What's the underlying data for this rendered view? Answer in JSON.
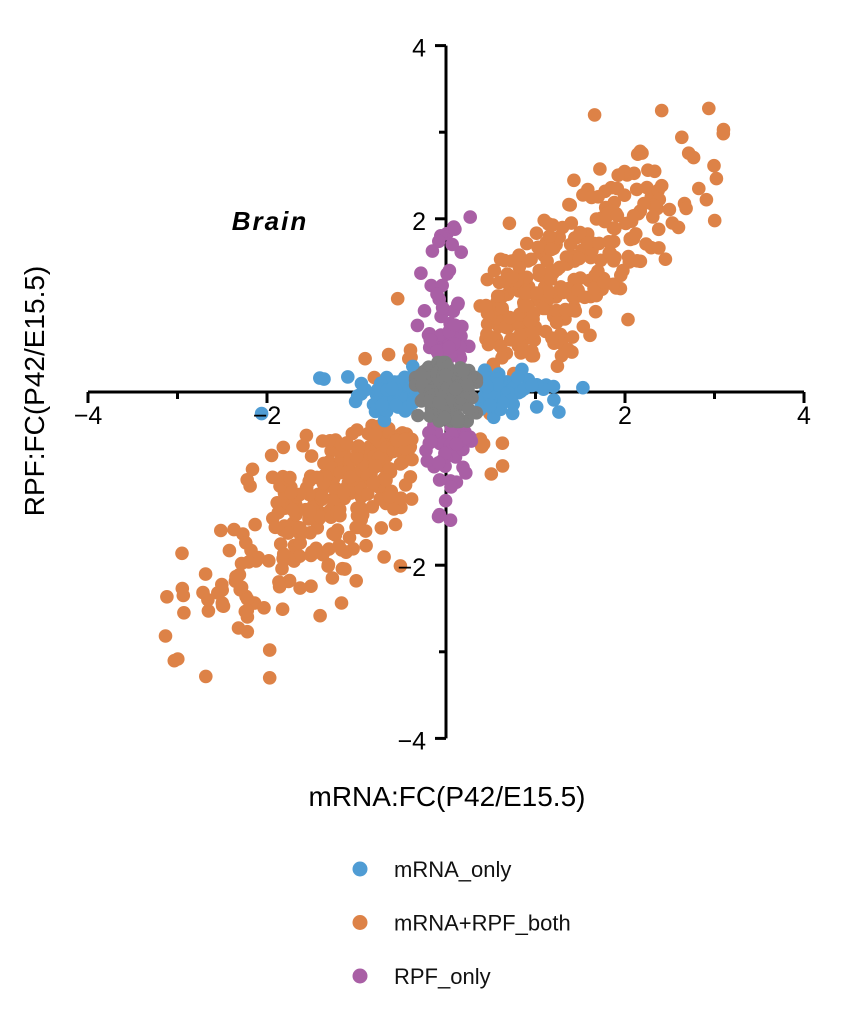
{
  "figure": {
    "title": "Brain",
    "x_axis_label": "mRNA:FC(P42/E15.5)",
    "y_axis_label": "RPF:FC(P42/E15.5)"
  },
  "legend": {
    "items": [
      {
        "label": "mRNA_only",
        "color": "#4F9CD4"
      },
      {
        "label": "mRNA+RPF_both",
        "color": "#DD8247"
      },
      {
        "label": "RPF_only",
        "color": "#A95FA5"
      }
    ]
  },
  "colors": {
    "axis": "#000000",
    "text": "#000000",
    "background": "#ffffff",
    "no_change_gray": "#7F7F7F"
  },
  "chart_data": {
    "type": "scatter",
    "title": "Brain",
    "xlabel": "mRNA:FC(P42/E15.5)",
    "ylabel": "RPF:FC(P42/E15.5)",
    "xlim": [
      -4,
      4
    ],
    "ylim": [
      -4,
      4
    ],
    "grid": false,
    "legend_position": "below",
    "point_radius_px": 6.8,
    "seed": 20,
    "x_ticks": [
      {
        "v": -4,
        "label": "−4",
        "major": true
      },
      {
        "v": -3,
        "major": false
      },
      {
        "v": -2,
        "label": "−2",
        "major": true
      },
      {
        "v": -1,
        "major": false
      },
      {
        "v": 1,
        "major": false
      },
      {
        "v": 2,
        "label": "2",
        "major": true
      },
      {
        "v": 3,
        "major": false
      },
      {
        "v": 4,
        "label": "4",
        "major": true
      }
    ],
    "y_ticks": [
      {
        "v": -4,
        "label": "−4",
        "major": true
      },
      {
        "v": -3,
        "major": false
      },
      {
        "v": -2,
        "label": "−2",
        "major": true
      },
      {
        "v": -1,
        "major": false
      },
      {
        "v": 1,
        "major": false
      },
      {
        "v": 2,
        "label": "2",
        "major": true
      },
      {
        "v": 4,
        "label": "4",
        "major": true
      },
      {
        "v": 3,
        "major": false
      }
    ],
    "draw_order": [
      "mRNA+RPF_both",
      "mRNA_only",
      "RPF_only",
      "no_change"
    ],
    "series": [
      {
        "name": "mRNA+RPF_both",
        "color": "#DD8247",
        "count": 620,
        "in_legend": true,
        "gen": {
          "kind": "diagonal",
          "x_sd": 1.3,
          "slope": 0.93,
          "resid_sd": 0.5,
          "min_abs": 0.38,
          "soft_min": 0.15,
          "soft_p": 0.07,
          "x_max": 3.2,
          "y_max": 3.3
        },
        "outliers": [
          [
            3.1,
            3.03
          ],
          [
            1.66,
            3.2
          ],
          [
            2.17,
            2.78
          ],
          [
            2.91,
            2.22
          ],
          [
            -1.97,
            -3.3
          ],
          [
            -1.97,
            -2.98
          ],
          [
            -2.55,
            -2.32
          ],
          [
            -2.66,
            -2.4
          ]
        ]
      },
      {
        "name": "mRNA_only",
        "color": "#4F9CD4",
        "count": 120,
        "in_legend": true,
        "gen": {
          "kind": "x_arm",
          "p_pos": 0.55,
          "offset": 0.35,
          "spread": 0.36,
          "tail_p": 0.12,
          "tail_max": 1.25,
          "arm_max": 1.6,
          "perp_sd": 0.13,
          "perp_max": 0.33
        },
        "outliers": [
          [
            -2.06,
            -0.25
          ],
          [
            -1.41,
            0.16
          ],
          [
            1.53,
            0.05
          ]
        ]
      },
      {
        "name": "RPF_only",
        "color": "#A95FA5",
        "count": 112,
        "in_legend": true,
        "gen": {
          "kind": "y_arm",
          "p_pos": 0.58,
          "offset": 0.35,
          "spread": 0.4,
          "tail_p": 0.15,
          "tail_max": 1.65,
          "arm_max": 2.0,
          "neg_max": 1.5,
          "perp_sd": 0.13,
          "perp_max": 0.32
        },
        "outliers": [
          [
            0.27,
            2.02
          ],
          [
            0.1,
            1.88
          ],
          [
            -0.08,
            1.74
          ],
          [
            0.05,
            -1.48
          ]
        ]
      },
      {
        "name": "no_change",
        "color": "#7F7F7F",
        "count": 175,
        "in_legend": false,
        "gen": {
          "kind": "blob",
          "sd": 0.17,
          "max": 0.34
        },
        "outliers": []
      }
    ]
  }
}
